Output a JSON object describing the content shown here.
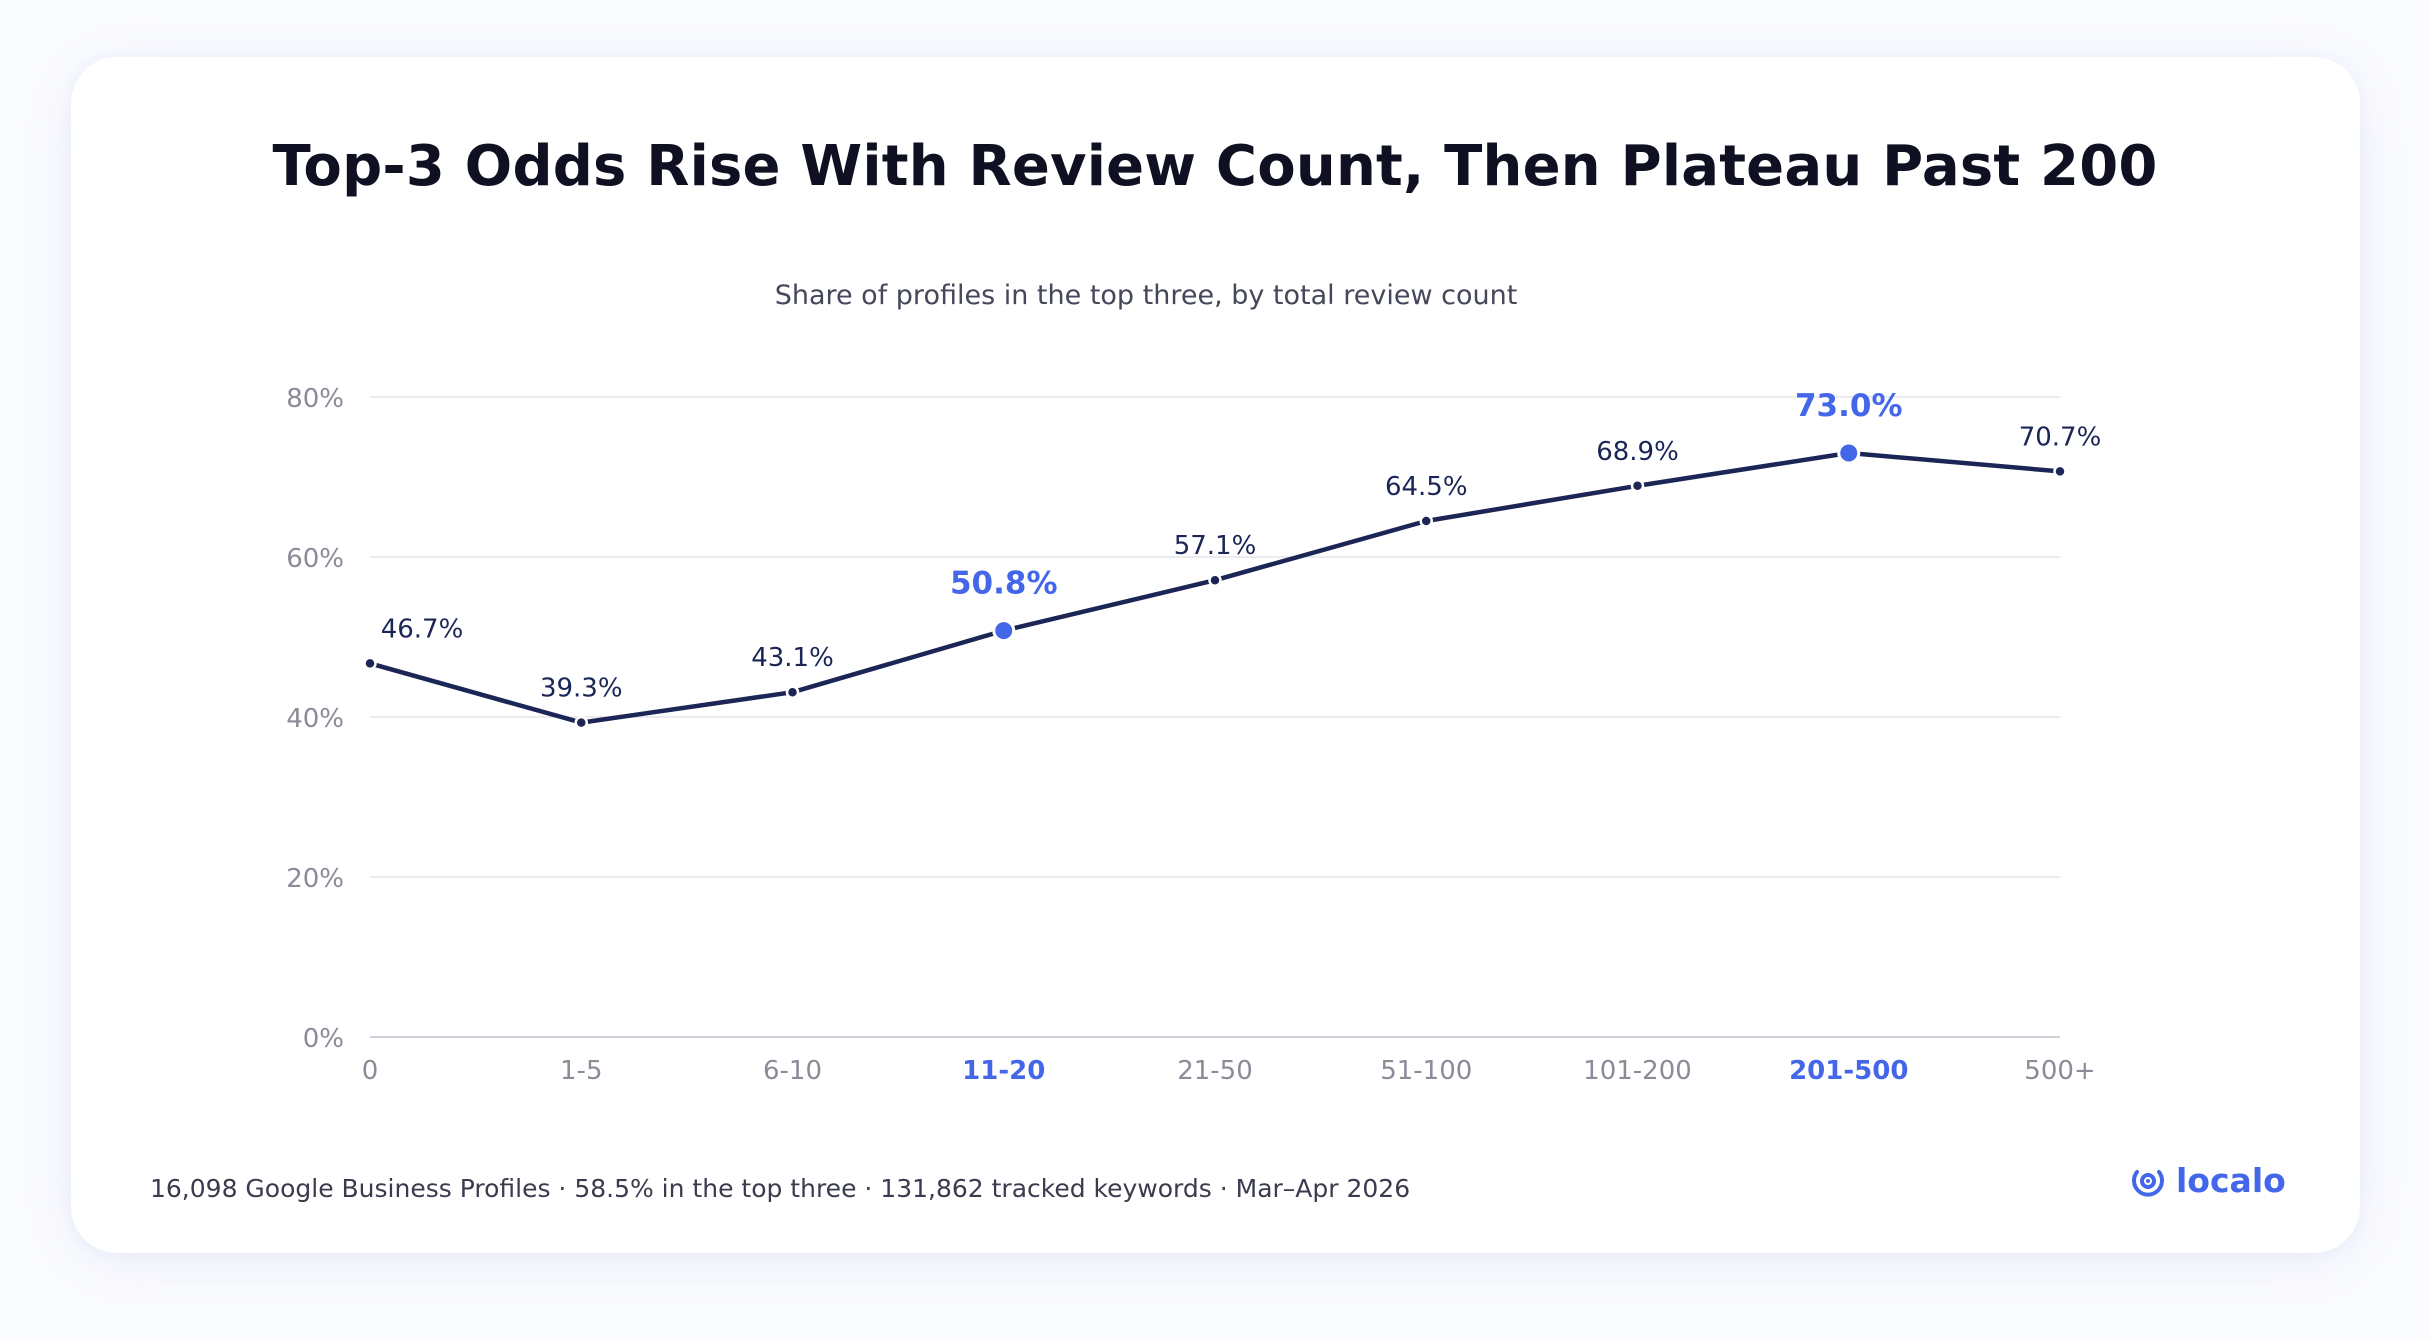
{
  "title": "Top-3 Odds Rise With Review Count, Then Plateau Past 200",
  "subtitle": "Share of profiles in the top three, by total review count",
  "footer": "16,098 Google Business Profiles · 58.5% in the top three · 131,862 tracked keywords · Mar–Apr 2026",
  "brand": "localo",
  "colors": {
    "line": "#1b2556",
    "highlight": "#4466e8",
    "grid": "#e3e4ea",
    "axis_text": "#8a8c98",
    "label_text": "#1b2556"
  },
  "chart_data": {
    "type": "line",
    "categories": [
      "0",
      "1-5",
      "6-10",
      "11-20",
      "21-50",
      "51-100",
      "101-200",
      "201-500",
      "500+"
    ],
    "values": [
      46.7,
      39.3,
      43.1,
      50.8,
      57.1,
      64.5,
      68.9,
      73.0,
      70.7
    ],
    "data_labels": [
      "46.7%",
      "39.3%",
      "43.1%",
      "50.8%",
      "57.1%",
      "64.5%",
      "68.9%",
      "73.0%",
      "70.7%"
    ],
    "highlighted": [
      "11-20",
      "201-500"
    ],
    "y_ticks": [
      0,
      20,
      40,
      60,
      80
    ],
    "y_tick_labels": [
      "0%",
      "20%",
      "40%",
      "60%",
      "80%"
    ],
    "ylim": [
      0,
      80
    ],
    "xlabel": "",
    "ylabel": "",
    "grid": true
  }
}
